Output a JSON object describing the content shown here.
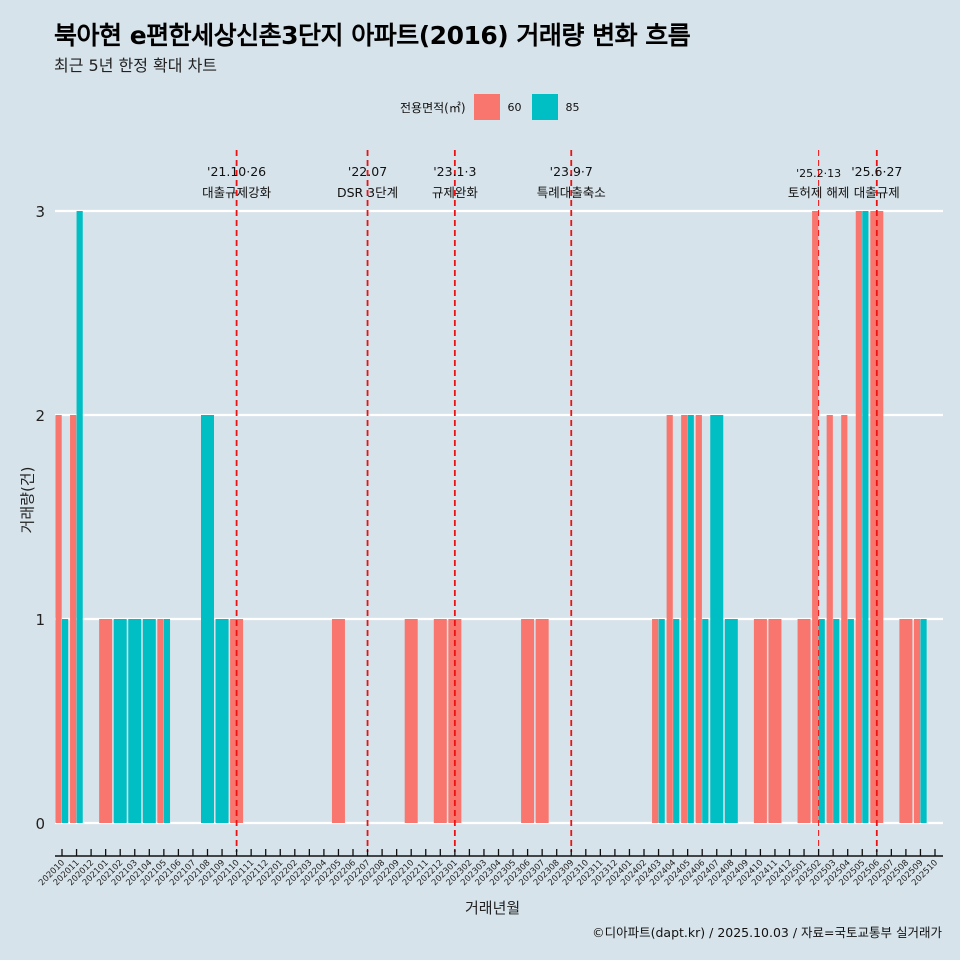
{
  "header": {
    "title": "북아현 e편한세상신촌3단지 아파트(2016) 거래량 변화 흐름",
    "subtitle": "최근 5년 한정 확대 차트"
  },
  "legend": {
    "title": "전용면적(㎡)",
    "items": [
      {
        "label": "60",
        "color": "#F8766D"
      },
      {
        "label": "85",
        "color": "#00BFC4"
      }
    ]
  },
  "footer": "©디아파트(dapt.kr) / 2025.10.03 / 자료=국토교통부 실거래가",
  "chart_data": {
    "type": "bar",
    "title": "북아현 e편한세상신촌3단지 아파트(2016) 거래량 변화 흐름",
    "subtitle": "최근 5년 한정 확대 차트",
    "xlabel": "거래년월",
    "ylabel": "거래량(건)",
    "ylim": [
      0,
      3
    ],
    "yticks": [
      0,
      1,
      2,
      3
    ],
    "grid": "horizontal",
    "legend_position": "top",
    "categories": [
      "202010",
      "202011",
      "202012",
      "202101",
      "202102",
      "202103",
      "202104",
      "202105",
      "202106",
      "202107",
      "202108",
      "202109",
      "202110",
      "202111",
      "202112",
      "202201",
      "202202",
      "202203",
      "202204",
      "202205",
      "202206",
      "202207",
      "202208",
      "202209",
      "202210",
      "202211",
      "202212",
      "202301",
      "202302",
      "202303",
      "202304",
      "202305",
      "202306",
      "202307",
      "202308",
      "202309",
      "202310",
      "202311",
      "202312",
      "202401",
      "202402",
      "202403",
      "202404",
      "202405",
      "202406",
      "202407",
      "202408",
      "202409",
      "202410",
      "202411",
      "202412",
      "202501",
      "202502",
      "202503",
      "202504",
      "202505",
      "202506",
      "202507",
      "202508",
      "202509",
      "202510"
    ],
    "series": [
      {
        "name": "60",
        "color": "#F8766D",
        "values": [
          2,
          2,
          0,
          1,
          0,
          0,
          0,
          1,
          0,
          0,
          0,
          0,
          1,
          0,
          0,
          0,
          0,
          0,
          0,
          1,
          0,
          0,
          0,
          0,
          1,
          0,
          1,
          1,
          0,
          0,
          0,
          0,
          1,
          1,
          0,
          0,
          0,
          0,
          0,
          0,
          0,
          1,
          2,
          2,
          2,
          0,
          0,
          0,
          1,
          1,
          0,
          1,
          3,
          2,
          2,
          3,
          3,
          0,
          1,
          1,
          0
        ]
      },
      {
        "name": "85",
        "color": "#00BFC4",
        "values": [
          1,
          3,
          0,
          0,
          1,
          1,
          1,
          1,
          0,
          0,
          2,
          1,
          0,
          0,
          0,
          0,
          0,
          0,
          0,
          0,
          0,
          0,
          0,
          0,
          0,
          0,
          0,
          0,
          0,
          0,
          0,
          0,
          0,
          0,
          0,
          0,
          0,
          0,
          0,
          0,
          0,
          1,
          1,
          2,
          1,
          2,
          1,
          0,
          0,
          0,
          0,
          0,
          1,
          1,
          1,
          3,
          0,
          0,
          0,
          1,
          0
        ]
      }
    ],
    "annotations": [
      {
        "month": "202110",
        "date": "'21.10·26",
        "label": "대출규제강화"
      },
      {
        "month": "202207",
        "date": "'22.07",
        "label": "DSR 3단계"
      },
      {
        "month": "202301",
        "date": "'23.1·3",
        "label": "규제완화"
      },
      {
        "month": "202309",
        "date": "'23.9·7",
        "label": "특례대출축소"
      },
      {
        "month": "202502",
        "date": "'25.2·13",
        "label": "토허제 해제"
      },
      {
        "month": "202506",
        "date": "'25.6·27",
        "label": "대출규제"
      }
    ]
  }
}
